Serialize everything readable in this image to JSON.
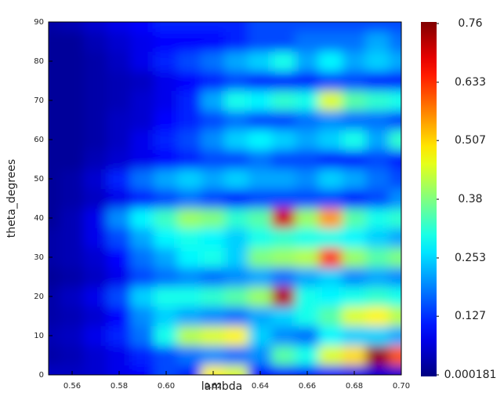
{
  "chart_data": {
    "type": "heatmap",
    "colormap": "jet",
    "xlabel": "lambda",
    "ylabel": "theta_degrees",
    "xlim": [
      0.55,
      0.7
    ],
    "xticks": [
      0.56,
      0.58,
      {
        "value": 0.6,
        "label": "0.60"
      },
      0.62,
      0.64,
      0.66,
      0.68,
      {
        "value": 0.7,
        "label": "0.70"
      }
    ],
    "ylim": [
      0,
      90
    ],
    "yticks": [
      0,
      10,
      20,
      30,
      40,
      50,
      60,
      70,
      80,
      90
    ],
    "zlim": [
      0.000181,
      0.76
    ],
    "zticks": [
      0.000181,
      0.127,
      0.253,
      0.38,
      0.507,
      0.633,
      0.76
    ],
    "x": [
      0.55,
      0.56,
      0.57,
      0.58,
      0.59,
      0.6,
      0.61,
      0.62,
      0.63,
      0.64,
      0.65,
      0.66,
      0.67,
      0.68,
      0.69,
      0.7
    ],
    "y": [
      0,
      5,
      10,
      15,
      20,
      25,
      30,
      35,
      40,
      45,
      50,
      55,
      60,
      65,
      70,
      75,
      80,
      85,
      90
    ],
    "z": [
      [
        0.05,
        0.05,
        0.06,
        0.08,
        0.1,
        0.15,
        0.12,
        0.48,
        0.45,
        0.1,
        0.12,
        0.1,
        0.1,
        0.08,
        0.06,
        0.06
      ],
      [
        0.03,
        0.04,
        0.06,
        0.08,
        0.12,
        0.15,
        0.18,
        0.2,
        0.18,
        0.2,
        0.35,
        0.3,
        0.45,
        0.5,
        0.74,
        0.6
      ],
      [
        0.04,
        0.05,
        0.08,
        0.12,
        0.18,
        0.3,
        0.42,
        0.45,
        0.48,
        0.25,
        0.2,
        0.18,
        0.28,
        0.25,
        0.25,
        0.22
      ],
      [
        0.03,
        0.04,
        0.06,
        0.1,
        0.2,
        0.25,
        0.22,
        0.2,
        0.18,
        0.22,
        0.25,
        0.3,
        0.35,
        0.45,
        0.48,
        0.42
      ],
      [
        0.03,
        0.05,
        0.08,
        0.15,
        0.25,
        0.3,
        0.3,
        0.32,
        0.35,
        0.4,
        0.72,
        0.3,
        0.28,
        0.3,
        0.32,
        0.3
      ],
      [
        0.02,
        0.03,
        0.05,
        0.08,
        0.15,
        0.18,
        0.2,
        0.18,
        0.2,
        0.22,
        0.18,
        0.22,
        0.25,
        0.2,
        0.22,
        0.2
      ],
      [
        0.03,
        0.04,
        0.06,
        0.1,
        0.18,
        0.22,
        0.28,
        0.3,
        0.25,
        0.38,
        0.4,
        0.42,
        0.62,
        0.4,
        0.35,
        0.38
      ],
      [
        0.03,
        0.04,
        0.08,
        0.15,
        0.22,
        0.28,
        0.3,
        0.28,
        0.25,
        0.3,
        0.32,
        0.3,
        0.3,
        0.28,
        0.25,
        0.22
      ],
      [
        0.02,
        0.04,
        0.08,
        0.2,
        0.28,
        0.33,
        0.4,
        0.38,
        0.32,
        0.35,
        0.7,
        0.4,
        0.55,
        0.35,
        0.3,
        0.32
      ],
      [
        0.02,
        0.03,
        0.05,
        0.08,
        0.12,
        0.15,
        0.18,
        0.15,
        0.12,
        0.15,
        0.15,
        0.15,
        0.15,
        0.12,
        0.15,
        0.2
      ],
      [
        0.02,
        0.03,
        0.06,
        0.12,
        0.18,
        0.22,
        0.25,
        0.22,
        0.25,
        0.22,
        0.22,
        0.2,
        0.25,
        0.22,
        0.18,
        0.15
      ],
      [
        0.02,
        0.02,
        0.04,
        0.06,
        0.08,
        0.1,
        0.12,
        0.15,
        0.15,
        0.18,
        0.15,
        0.15,
        0.12,
        0.12,
        0.15,
        0.12
      ],
      [
        0.02,
        0.02,
        0.03,
        0.05,
        0.08,
        0.12,
        0.15,
        0.2,
        0.25,
        0.28,
        0.25,
        0.22,
        0.25,
        0.3,
        0.22,
        0.32
      ],
      [
        0.02,
        0.02,
        0.03,
        0.05,
        0.06,
        0.1,
        0.12,
        0.15,
        0.18,
        0.15,
        0.15,
        0.18,
        0.2,
        0.18,
        0.18,
        0.15
      ],
      [
        0.02,
        0.02,
        0.03,
        0.04,
        0.06,
        0.08,
        0.12,
        0.22,
        0.3,
        0.28,
        0.32,
        0.3,
        0.45,
        0.35,
        0.32,
        0.3
      ],
      [
        0.02,
        0.02,
        0.03,
        0.04,
        0.05,
        0.08,
        0.1,
        0.12,
        0.15,
        0.12,
        0.12,
        0.12,
        0.15,
        0.15,
        0.12,
        0.12
      ],
      [
        0.02,
        0.02,
        0.03,
        0.05,
        0.08,
        0.12,
        0.15,
        0.18,
        0.22,
        0.25,
        0.3,
        0.22,
        0.28,
        0.22,
        0.25,
        0.22
      ],
      [
        0.02,
        0.02,
        0.04,
        0.06,
        0.08,
        0.1,
        0.1,
        0.1,
        0.12,
        0.15,
        0.15,
        0.18,
        0.18,
        0.18,
        0.22,
        0.18
      ],
      [
        0.03,
        0.04,
        0.06,
        0.08,
        0.1,
        0.12,
        0.12,
        0.12,
        0.12,
        0.15,
        0.15,
        0.15,
        0.15,
        0.15,
        0.15,
        0.15
      ]
    ]
  }
}
